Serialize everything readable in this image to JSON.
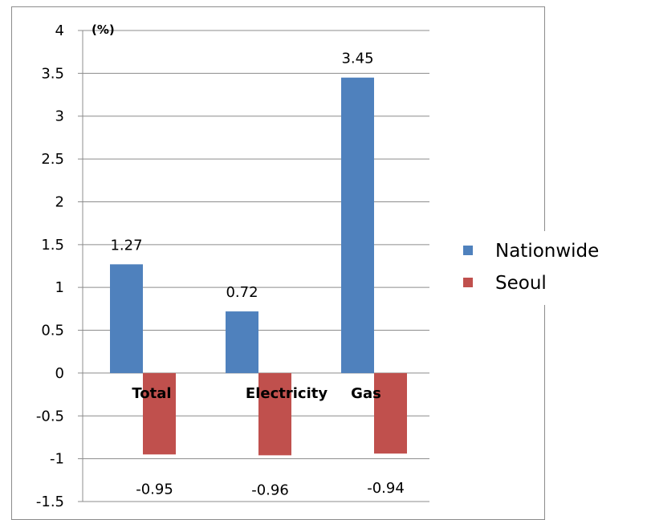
{
  "chart_data": {
    "type": "bar",
    "title": "",
    "xlabel": "",
    "ylabel": "",
    "unit_label": "(%)",
    "categories": [
      "Total",
      "Electricity",
      "Gas"
    ],
    "series": [
      {
        "name": "Nationwide",
        "values": [
          1.27,
          0.72,
          3.45
        ],
        "color": "#4f81bd"
      },
      {
        "name": "Seoul",
        "values": [
          -0.95,
          -0.96,
          -0.94
        ],
        "color": "#c0504d"
      }
    ],
    "data_labels": {
      "Nationwide": [
        "1.27",
        "0.72",
        "3.45"
      ],
      "Seoul": [
        "-0.95",
        "-0.96",
        "-0.94"
      ]
    },
    "ylim": [
      -1.5,
      4
    ],
    "yticks": [
      4,
      3.5,
      3,
      2.5,
      2,
      1.5,
      1,
      0.5,
      0,
      -0.5,
      -1,
      -1.5
    ],
    "ytick_labels": [
      "4",
      "3.5",
      "3",
      "2.5",
      "2",
      "1.5",
      "1",
      "0.5",
      "0",
      "-0.5",
      "-1",
      "-1.5"
    ],
    "grid": "horizontal",
    "legend_position": "right"
  }
}
